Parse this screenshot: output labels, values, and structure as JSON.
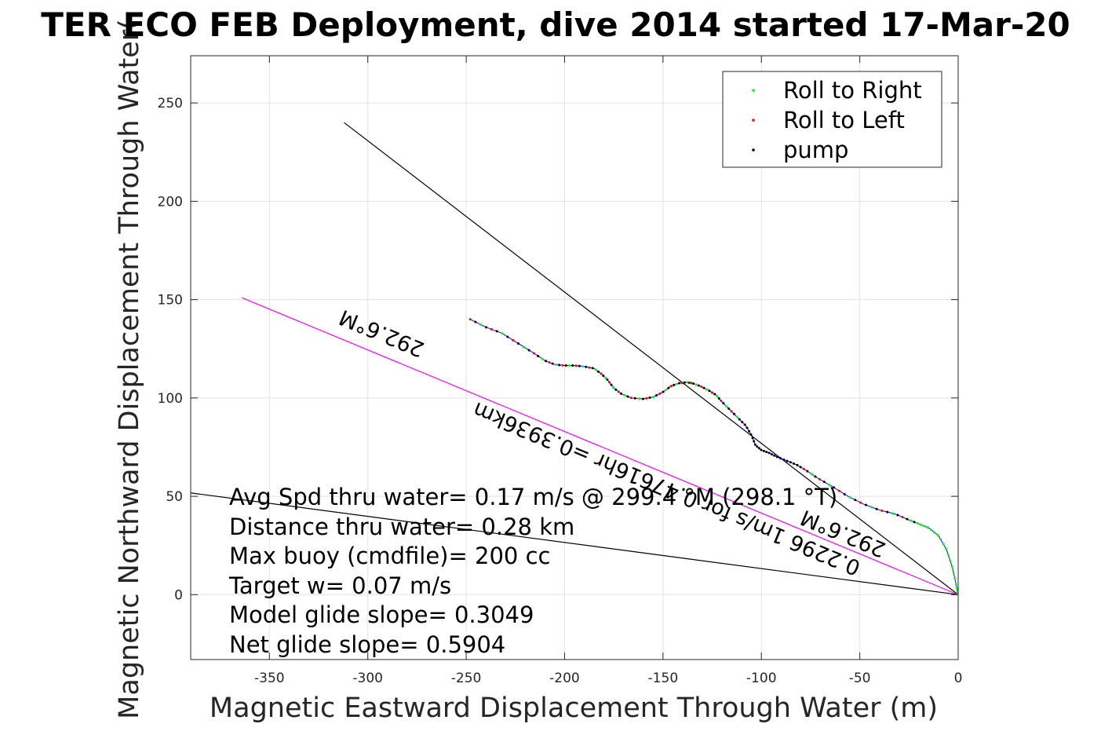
{
  "chart_data": {
    "type": "scatter",
    "title": "TER ECO FEB Deployment, dive 2014 started 17-Mar-20",
    "xlabel": "Magnetic Eastward Displacement Through Water (m)",
    "ylabel": "Magnetic Northward Displacement Through Water(",
    "xlim": [
      -390,
      0
    ],
    "ylim": [
      -33,
      274
    ],
    "xticks": [
      -350,
      -300,
      -250,
      -200,
      -150,
      -100,
      -50,
      0
    ],
    "yticks": [
      0,
      50,
      100,
      150,
      200,
      250
    ],
    "grid": true,
    "legend_position": "top-right",
    "legend": [
      {
        "label": "Roll to Right",
        "color": "#00ff00"
      },
      {
        "label": "Roll to Left",
        "color": "#ff0000"
      },
      {
        "label": "pump",
        "color": "#000000"
      }
    ],
    "track": {
      "color": "#0000ff",
      "x": [
        -248,
        -240,
        -232,
        -224,
        -216,
        -210,
        -205,
        -200,
        -195,
        -190,
        -185,
        -181,
        -178,
        -175,
        -171,
        -166,
        -160,
        -155,
        -150,
        -146,
        -142,
        -138,
        -135,
        -131,
        -127,
        -123,
        -120,
        -116,
        -112,
        -108,
        -105,
        -103,
        -100,
        -96,
        -92,
        -87,
        -82,
        -77,
        -71,
        -64,
        -56,
        -48,
        -40,
        -32,
        -25,
        -20,
        -15,
        -10,
        -6,
        -3,
        -1,
        0
      ],
      "y": [
        140,
        136,
        133,
        128,
        123,
        119,
        117,
        116.5,
        116.5,
        116,
        115,
        112,
        109,
        105,
        102,
        100,
        99.5,
        100.5,
        103,
        106,
        107.5,
        108,
        107.5,
        106,
        104,
        101.5,
        98,
        94,
        90,
        86,
        81,
        76,
        73.5,
        72,
        70,
        68,
        66,
        63,
        59,
        55,
        50,
        46,
        43,
        41,
        38,
        36,
        34,
        30,
        23,
        14,
        5,
        0
      ]
    },
    "heading_lines": [
      {
        "x": [
          -312,
          0
        ],
        "y": [
          240,
          0
        ],
        "color": "#000000"
      },
      {
        "x": [
          -392,
          0
        ],
        "y": [
          52,
          0
        ],
        "color": "#000000"
      },
      {
        "x": [
          -364,
          0
        ],
        "y": [
          151,
          0
        ],
        "color": "#ff00ff"
      }
    ],
    "annotations": {
      "heading_label_1": "292.6°M",
      "heading_label_2": "292.6°M",
      "speed_label": "0.2296 1m/s for 0.47616hr =0.3936km"
    },
    "stats": [
      "Avg Spd thru water=  0.17 m/s @ 299.4 °M (298.1 °T)",
      "Distance thru water=  0.28 km",
      "Max buoy (cmdfile)= 200 cc",
      "Target w= 0.07 m/s",
      "Model glide slope= 0.3049",
      "Net glide slope= 0.5904"
    ]
  }
}
